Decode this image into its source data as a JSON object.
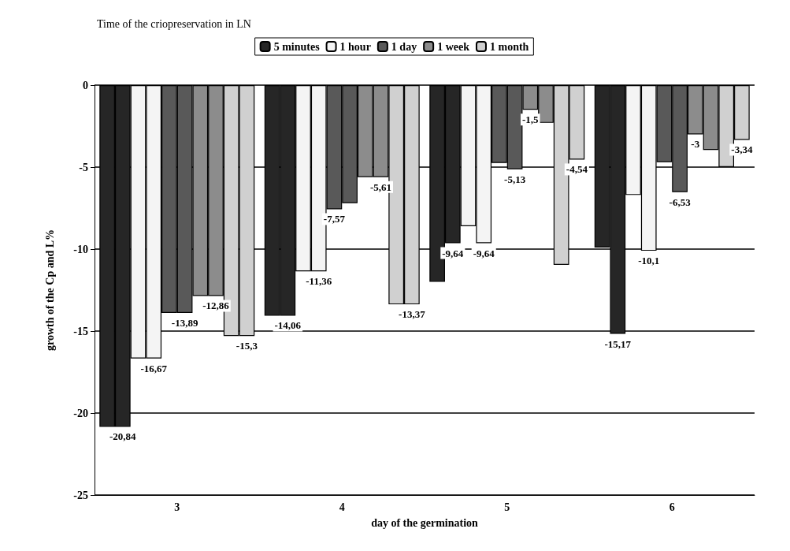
{
  "chart_data": {
    "type": "bar",
    "title": "Time of the criopreservation in LN",
    "xlabel": "day of the germination",
    "ylabel": "growth of the Cp and L%",
    "categories": [
      "3",
      "4",
      "5",
      "6"
    ],
    "ylim": [
      -25,
      0
    ],
    "yticks": [
      0,
      -5,
      -10,
      -15,
      -20,
      -25
    ],
    "grid": "y",
    "legend": "top",
    "series": [
      {
        "name": "5 minutes",
        "color": "#262626",
        "values": [
          -20.84,
          -14.06,
          -12.0,
          -9.9
        ]
      },
      {
        "color": "#262626",
        "values": [
          -20.84,
          -14.06,
          -9.64,
          -15.17
        ],
        "value_labels": [
          "-20,84",
          "-14,06",
          "-9,64",
          "-15,17"
        ]
      },
      {
        "name": "1 hour",
        "color": "#f4f4f4",
        "values": [
          -16.67,
          -11.36,
          -8.6,
          -6.7
        ]
      },
      {
        "color": "#f4f4f4",
        "values": [
          -16.67,
          -11.36,
          -9.64,
          -10.1
        ],
        "value_labels": [
          "-16,67",
          "-11,36",
          "-9,64",
          "-10,1"
        ]
      },
      {
        "name": "1 day",
        "color": "#595959",
        "values": [
          -13.89,
          -7.57,
          -4.75,
          -4.7
        ],
        "value_labels": [
          null,
          "-7,57",
          null,
          null
        ]
      },
      {
        "color": "#595959",
        "values": [
          -13.89,
          -7.2,
          -5.13,
          -6.53
        ],
        "value_labels": [
          "-13,89",
          null,
          "-5,13",
          "-6,53"
        ]
      },
      {
        "name": "1 week",
        "color": "#8c8c8c",
        "values": [
          -12.86,
          -5.61,
          -1.5,
          -3
        ],
        "value_labels": [
          null,
          null,
          "-1,5",
          "-3"
        ]
      },
      {
        "color": "#8c8c8c",
        "values": [
          -12.86,
          -5.61,
          -2.3,
          -3.95
        ],
        "value_labels": [
          "-12,86",
          "-5,61",
          null,
          null
        ]
      },
      {
        "name": "1 month",
        "color": "#d0d0d0",
        "values": [
          -15.3,
          -13.37,
          -10.96,
          -5.0
        ]
      },
      {
        "color": "#d0d0d0",
        "values": [
          -15.3,
          -13.37,
          -4.54,
          -3.34
        ],
        "value_labels": [
          "-15,3",
          "-13,37",
          "-4,54",
          "-3,34"
        ]
      }
    ]
  }
}
